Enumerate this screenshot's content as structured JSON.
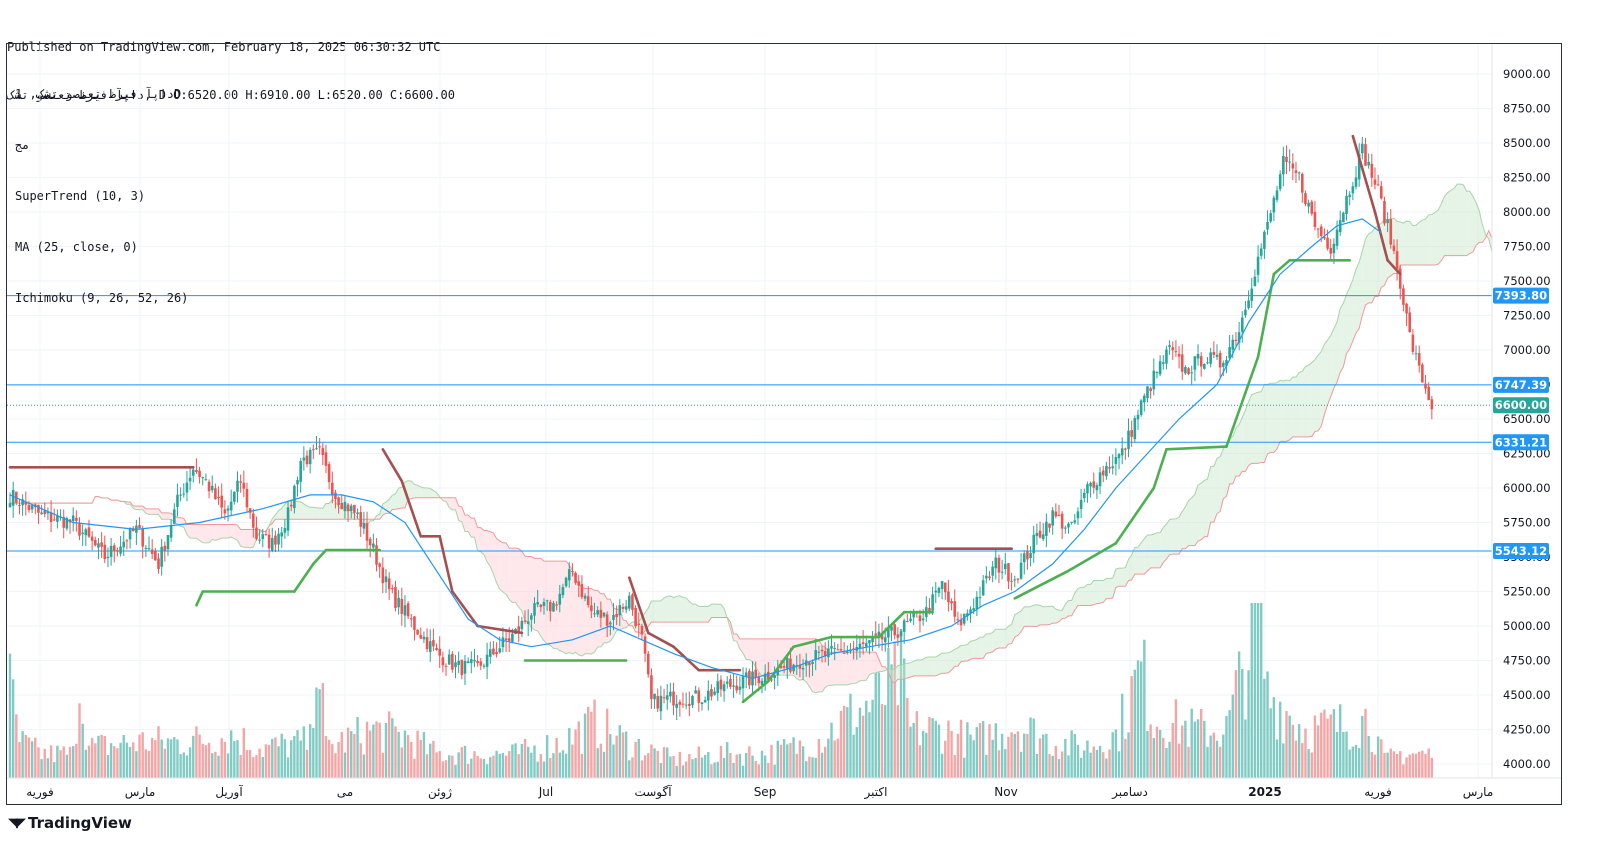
{
  "header": {
    "published": "Published on TradingView.com, February 18, 2025 06:30:32 UTC",
    "ohlc": "داپآ فیرظ تعنصو تشک, D O:6520.00 H:6910.00 L:6520.00 C:6600.00"
  },
  "legend": {
    "symbol_line": "داپآ فیرظ تعنصو تشک, 1D",
    "exchange": "مج",
    "indicators": [
      "SuperTrend (10, 3)",
      "MA (25, close, 0)",
      "Ichimoku (9, 26, 52, 26)"
    ]
  },
  "brand": {
    "name": "TradingView",
    "logo_icon": "tradingview-logo-icon"
  },
  "colors": {
    "up": "#26a69a",
    "down": "#ef5350",
    "supertrend_up": "#4caf50",
    "supertrend_down": "#a54f4f",
    "ma": "#2196f3",
    "cloud_bull": "#c8e6c9",
    "cloud_bear": "#ffcdd2",
    "level_line": "#2196f3",
    "price_label": "#2196f3"
  },
  "chart_data": {
    "type": "candlestick",
    "y_axis": {
      "ticks": [
        "9000.00",
        "8750.00",
        "8500.00",
        "8250.00",
        "8000.00",
        "7750.00",
        "7500.00",
        "7250.00",
        "7000.00",
        "6750.00",
        "6500.00",
        "6250.00",
        "6000.00",
        "5750.00",
        "5500.00",
        "5250.00",
        "5000.00",
        "4750.00",
        "4500.00",
        "4250.00",
        "4000.00"
      ],
      "ylim": [
        3950,
        9050
      ]
    },
    "x_axis": {
      "labels": [
        "فوریه",
        "مارس",
        "آوریل",
        "می",
        "ژوئن",
        "Jul",
        "آگوست",
        "Sep",
        "اکتبر",
        "Nov",
        "دسامبر",
        "2025",
        "فوریه",
        "مارس"
      ]
    },
    "levels": [
      {
        "value": 7393.8,
        "label": "7393.80"
      },
      {
        "value": 6747.39,
        "label": "6747.39"
      },
      {
        "value": 6331.21,
        "label": "6331.21"
      },
      {
        "value": 5543.12,
        "label": "5543.12"
      }
    ],
    "last_price": {
      "value": 6600.0,
      "label": "6600.00"
    },
    "close_anchors": [
      [
        0,
        5950
      ],
      [
        10,
        5800
      ],
      [
        20,
        5750
      ],
      [
        30,
        5500
      ],
      [
        40,
        5700
      ],
      [
        47,
        5450
      ],
      [
        53,
        5900
      ],
      [
        58,
        6150
      ],
      [
        62,
        6050
      ],
      [
        68,
        5800
      ],
      [
        73,
        6050
      ],
      [
        78,
        5650
      ],
      [
        83,
        5600
      ],
      [
        88,
        5800
      ],
      [
        92,
        6200
      ],
      [
        98,
        6250
      ],
      [
        103,
        5950
      ],
      [
        110,
        5800
      ],
      [
        115,
        5550
      ],
      [
        120,
        5250
      ],
      [
        128,
        5000
      ],
      [
        135,
        4800
      ],
      [
        142,
        4700
      ],
      [
        148,
        4700
      ],
      [
        155,
        4850
      ],
      [
        160,
        4950
      ],
      [
        165,
        5100
      ],
      [
        172,
        5150
      ],
      [
        178,
        5400
      ],
      [
        184,
        5100
      ],
      [
        190,
        5050
      ],
      [
        196,
        5200
      ],
      [
        200,
        4900
      ],
      [
        203,
        4450
      ],
      [
        210,
        4480
      ],
      [
        218,
        4480
      ],
      [
        225,
        4550
      ],
      [
        232,
        4600
      ],
      [
        240,
        4650
      ],
      [
        250,
        4750
      ],
      [
        260,
        4800
      ],
      [
        270,
        4850
      ],
      [
        280,
        4950
      ],
      [
        290,
        5100
      ],
      [
        295,
        5300
      ],
      [
        300,
        5000
      ],
      [
        306,
        5200
      ],
      [
        312,
        5450
      ],
      [
        318,
        5350
      ],
      [
        325,
        5650
      ],
      [
        330,
        5800
      ],
      [
        336,
        5700
      ],
      [
        341,
        6000
      ],
      [
        347,
        6150
      ],
      [
        352,
        6250
      ],
      [
        358,
        6600
      ],
      [
        362,
        6800
      ],
      [
        367,
        7000
      ],
      [
        372,
        6850
      ],
      [
        378,
        6950
      ],
      [
        383,
        6900
      ],
      [
        389,
        7150
      ],
      [
        393,
        7500
      ],
      [
        398,
        7900
      ],
      [
        403,
        8350
      ],
      [
        408,
        8250
      ],
      [
        413,
        7900
      ],
      [
        418,
        7750
      ],
      [
        423,
        8100
      ],
      [
        428,
        8450
      ],
      [
        433,
        8150
      ],
      [
        437,
        7800
      ],
      [
        440,
        7500
      ],
      [
        443,
        7100
      ],
      [
        446,
        6850
      ],
      [
        450,
        6600
      ]
    ],
    "supertrend_anchors": [
      [
        0,
        6150,
        "d"
      ],
      [
        58,
        6150,
        "d"
      ],
      [
        59,
        5150,
        "u"
      ],
      [
        61,
        5250,
        "u"
      ],
      [
        90,
        5250,
        "u"
      ],
      [
        96,
        5450,
        "u"
      ],
      [
        100,
        5550,
        "u"
      ],
      [
        117,
        5550,
        "u"
      ],
      [
        118,
        6280,
        "d"
      ],
      [
        124,
        6050,
        "d"
      ],
      [
        130,
        5650,
        "d"
      ],
      [
        136,
        5650,
        "d"
      ],
      [
        140,
        5250,
        "d"
      ],
      [
        148,
        5000,
        "d"
      ],
      [
        162,
        4950,
        "d"
      ],
      [
        163,
        4750,
        "u"
      ],
      [
        195,
        4750,
        "u"
      ],
      [
        196,
        5350,
        "d"
      ],
      [
        202,
        4950,
        "d"
      ],
      [
        210,
        4850,
        "d"
      ],
      [
        218,
        4680,
        "d"
      ],
      [
        231,
        4680,
        "d"
      ],
      [
        232,
        4450,
        "u"
      ],
      [
        240,
        4600,
        "u"
      ],
      [
        248,
        4850,
        "u"
      ],
      [
        260,
        4920,
        "u"
      ],
      [
        275,
        4920,
        "u"
      ],
      [
        283,
        5100,
        "u"
      ],
      [
        292,
        5100,
        "u"
      ],
      [
        293,
        5560,
        "d"
      ],
      [
        317,
        5560,
        "d"
      ],
      [
        318,
        5200,
        "u"
      ],
      [
        335,
        5400,
        "u"
      ],
      [
        350,
        5600,
        "u"
      ],
      [
        362,
        6000,
        "u"
      ],
      [
        366,
        6280,
        "u"
      ],
      [
        385,
        6300,
        "u"
      ],
      [
        395,
        6950,
        "u"
      ],
      [
        400,
        7550,
        "u"
      ],
      [
        405,
        7650,
        "u"
      ],
      [
        424,
        7650,
        "u"
      ],
      [
        425,
        8550,
        "d"
      ],
      [
        432,
        8000,
        "d"
      ],
      [
        436,
        7650,
        "d"
      ],
      [
        440,
        7550,
        "d"
      ]
    ],
    "ma_anchors": [
      [
        0,
        5950
      ],
      [
        20,
        5750
      ],
      [
        40,
        5700
      ],
      [
        60,
        5750
      ],
      [
        80,
        5850
      ],
      [
        95,
        5950
      ],
      [
        105,
        5950
      ],
      [
        115,
        5900
      ],
      [
        125,
        5750
      ],
      [
        135,
        5400
      ],
      [
        145,
        5050
      ],
      [
        155,
        4900
      ],
      [
        165,
        4850
      ],
      [
        178,
        4900
      ],
      [
        190,
        5000
      ],
      [
        200,
        4900
      ],
      [
        210,
        4800
      ],
      [
        222,
        4700
      ],
      [
        235,
        4620
      ],
      [
        248,
        4700
      ],
      [
        260,
        4800
      ],
      [
        272,
        4850
      ],
      [
        285,
        4900
      ],
      [
        298,
        5000
      ],
      [
        308,
        5150
      ],
      [
        318,
        5250
      ],
      [
        330,
        5450
      ],
      [
        340,
        5700
      ],
      [
        350,
        6000
      ],
      [
        360,
        6250
      ],
      [
        370,
        6500
      ],
      [
        382,
        6750
      ],
      [
        392,
        7200
      ],
      [
        402,
        7550
      ],
      [
        412,
        7750
      ],
      [
        420,
        7900
      ],
      [
        428,
        7950
      ],
      [
        434,
        7850
      ]
    ],
    "volume_anchors": [
      [
        0,
        150
      ],
      [
        3,
        60
      ],
      [
        10,
        40
      ],
      [
        20,
        40
      ],
      [
        22,
        170
      ],
      [
        25,
        50
      ],
      [
        40,
        60
      ],
      [
        45,
        60
      ],
      [
        55,
        60
      ],
      [
        70,
        70
      ],
      [
        80,
        50
      ],
      [
        95,
        60
      ],
      [
        97,
        250
      ],
      [
        100,
        50
      ],
      [
        115,
        80
      ],
      [
        125,
        70
      ],
      [
        135,
        40
      ],
      [
        145,
        40
      ],
      [
        160,
        40
      ],
      [
        175,
        60
      ],
      [
        185,
        90
      ],
      [
        195,
        60
      ],
      [
        210,
        30
      ],
      [
        225,
        40
      ],
      [
        240,
        40
      ],
      [
        255,
        60
      ],
      [
        265,
        100
      ],
      [
        275,
        130
      ],
      [
        282,
        170
      ],
      [
        285,
        80
      ],
      [
        295,
        80
      ],
      [
        305,
        60
      ],
      [
        318,
        90
      ],
      [
        330,
        60
      ],
      [
        340,
        50
      ],
      [
        350,
        70
      ],
      [
        358,
        180
      ],
      [
        362,
        100
      ],
      [
        375,
        80
      ],
      [
        385,
        80
      ],
      [
        395,
        270
      ],
      [
        398,
        140
      ],
      [
        410,
        80
      ],
      [
        425,
        90
      ],
      [
        430,
        100
      ],
      [
        435,
        30
      ],
      [
        440,
        40
      ]
    ]
  }
}
